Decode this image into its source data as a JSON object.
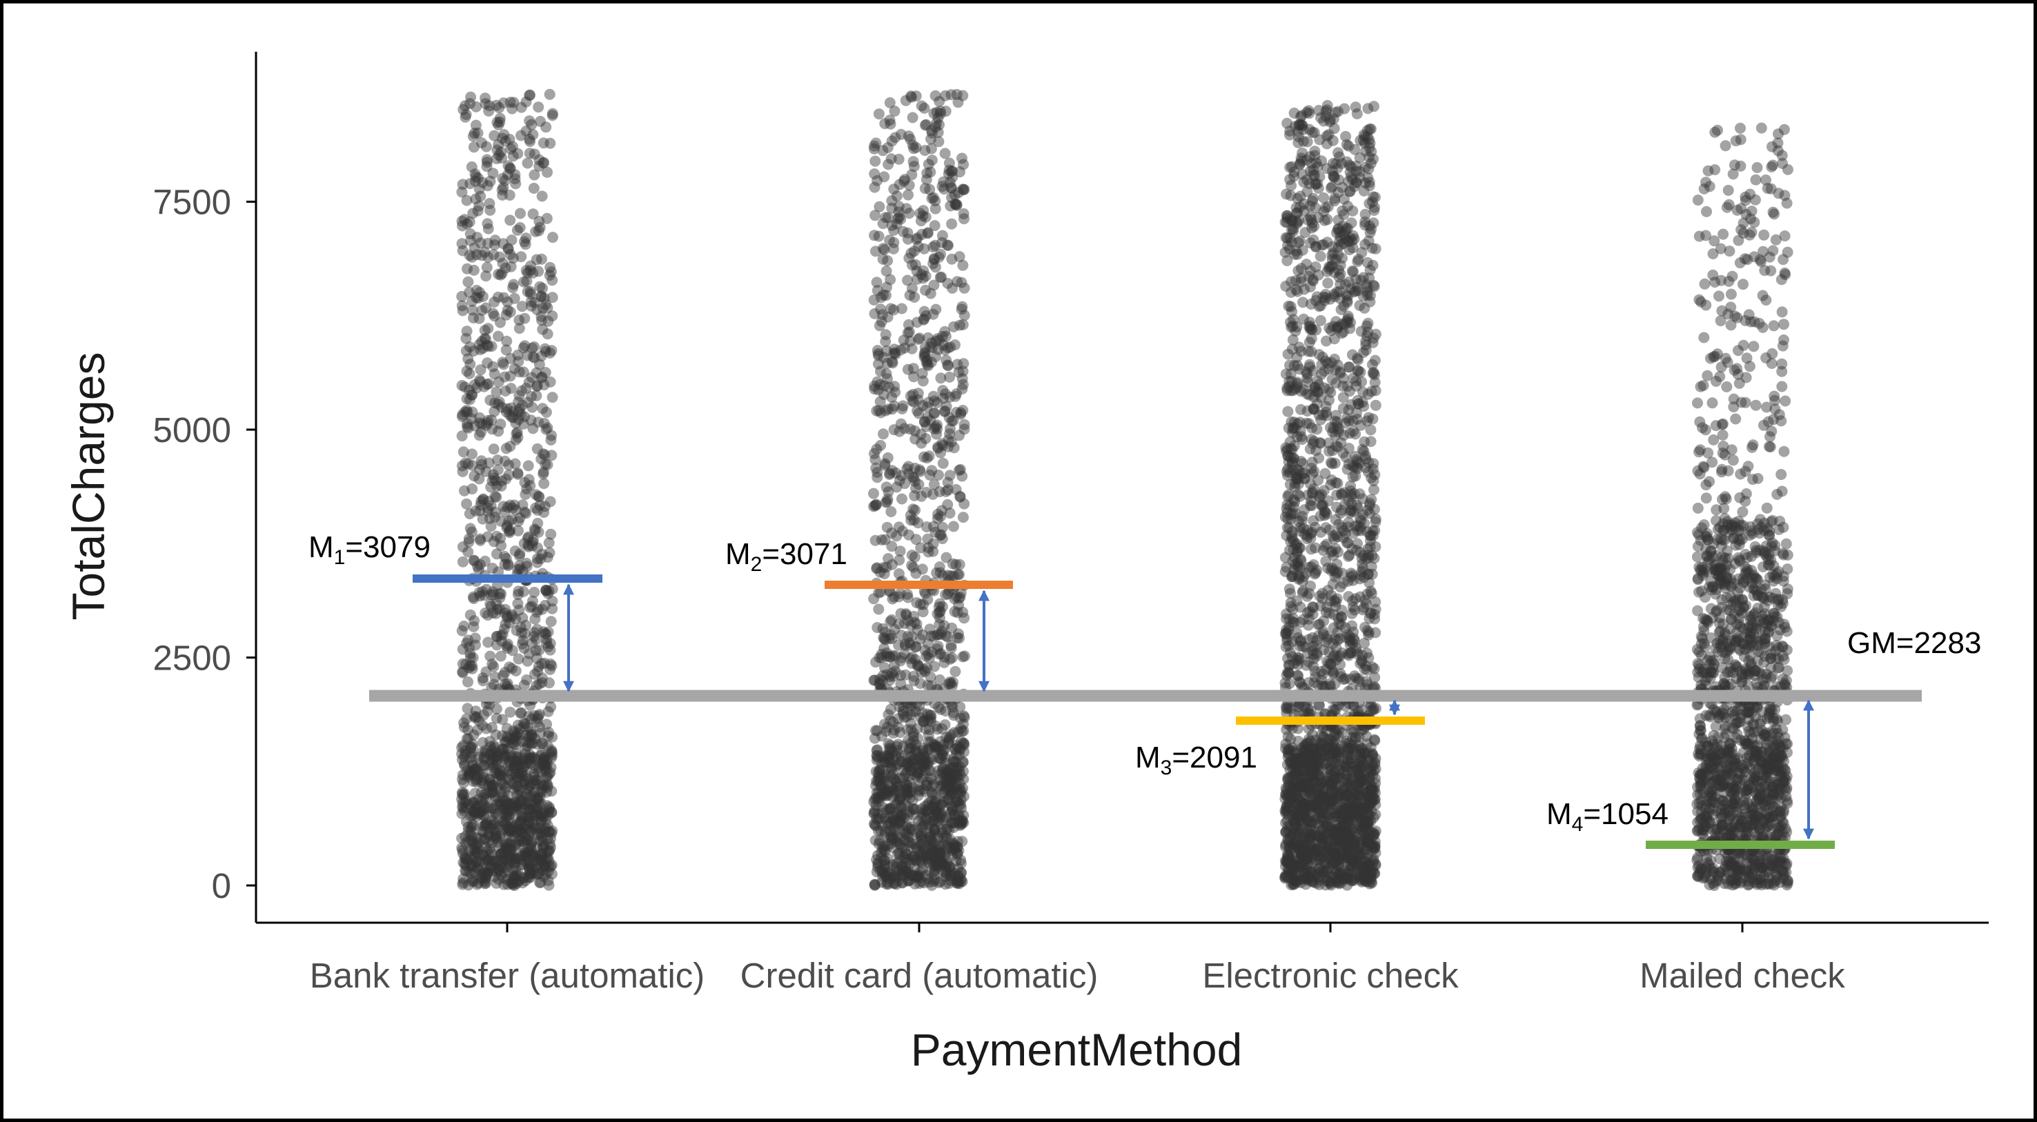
{
  "chart_data": {
    "type": "scatter",
    "subtype": "jitter strip plot",
    "xlabel": "PaymentMethod",
    "ylabel": "TotalCharges",
    "categories": [
      "Bank transfer (automatic)",
      "Credit card (automatic)",
      "Electronic check",
      "Mailed check"
    ],
    "yticks": [
      "0",
      "2500",
      "5000",
      "7500"
    ],
    "ylim": [
      -100,
      9000
    ],
    "grid": false,
    "point_color": "#333333",
    "point_alpha": 0.45,
    "distribution": [
      {
        "category": "Bank transfer (automatic)",
        "approx_points": 1540,
        "min": 0,
        "max": 8680,
        "dense_below": 1500
      },
      {
        "category": "Credit card (automatic)",
        "approx_points": 1520,
        "min": 0,
        "max": 8680,
        "dense_below": 1500
      },
      {
        "category": "Electronic check",
        "approx_points": 2360,
        "min": 0,
        "max": 8560,
        "dense_below": 1500
      },
      {
        "category": "Mailed check",
        "approx_points": 1600,
        "min": 0,
        "max": 8340,
        "dense_below": 1500
      }
    ],
    "group_means": [
      {
        "label_main": "M",
        "label_sub": "1",
        "label_value": "=3079",
        "value": 3079,
        "color": "#4472c4"
      },
      {
        "label_main": "M",
        "label_sub": "2",
        "label_value": "=3071",
        "value": 3071,
        "color": "#ed7d31"
      },
      {
        "label_main": "M",
        "label_sub": "3",
        "label_value": "=2091",
        "value": 2091,
        "color": "#ffc000"
      },
      {
        "label_main": "M",
        "label_sub": "4",
        "label_value": "=1054",
        "value": 1054,
        "color": "#70ad47"
      }
    ],
    "grand_mean": {
      "label": "GM=2283",
      "value": 2283,
      "color": "#a6a6a6"
    },
    "deviation_arrow_color": "#4472c4"
  }
}
